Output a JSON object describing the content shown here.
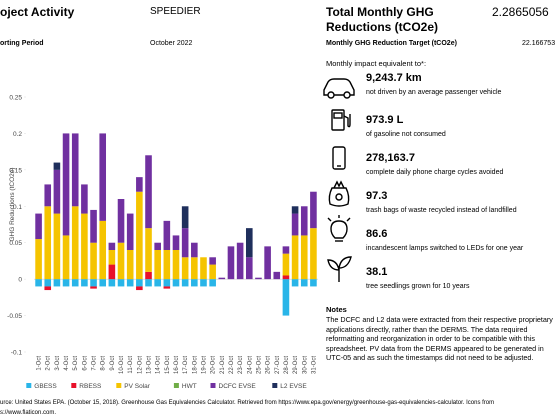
{
  "header": {
    "activity_title": "oject Activity",
    "company": "SPEEDIER",
    "total_label": "Total Monthly GHG Reductions (tCO2e)",
    "total_value": "2.2865056",
    "period_label": "orting Period",
    "period": "October 2022",
    "target_label": "Monthly GHG Reduction Target (tCO2e)",
    "target_value": "22.166753"
  },
  "chart_data": {
    "type": "stacked_bar",
    "y_label": "GHG Reductions (tCO2e)",
    "categories": [
      "1-Oct",
      "2-Oct",
      "3-Oct",
      "4-Oct",
      "5-Oct",
      "6-Oct",
      "7-Oct",
      "8-Oct",
      "9-Oct",
      "10-Oct",
      "11-Oct",
      "12-Oct",
      "13-Oct",
      "14-Oct",
      "15-Oct",
      "16-Oct",
      "17-Oct",
      "18-Oct",
      "19-Oct",
      "20-Oct",
      "21-Oct",
      "22-Oct",
      "23-Oct",
      "24-Oct",
      "25-Oct",
      "26-Oct",
      "27-Oct",
      "28-Oct",
      "29-Oct",
      "30-Oct",
      "31-Oct"
    ],
    "series": [
      {
        "name": "GBESS",
        "color": "#29b5e8",
        "values": [
          -0.01,
          -0.01,
          -0.01,
          -0.01,
          -0.01,
          -0.01,
          -0.01,
          -0.01,
          -0.01,
          -0.01,
          -0.01,
          -0.01,
          -0.01,
          -0.01,
          -0.01,
          -0.01,
          -0.01,
          -0.01,
          -0.01,
          -0.01,
          0,
          0,
          0,
          0,
          0,
          0,
          0,
          -0.05,
          -0.01,
          -0.01,
          -0.01
        ]
      },
      {
        "name": "RBESS",
        "color": "#e8102a",
        "values": [
          0,
          -0.005,
          0,
          0,
          0,
          0,
          -0.003,
          0,
          0.02,
          0,
          0,
          -0.005,
          0.01,
          0,
          -0.003,
          0,
          0,
          0,
          0,
          0,
          0,
          0,
          0,
          0,
          0,
          0,
          0,
          0.005,
          0,
          0,
          0
        ]
      },
      {
        "name": "PV Solar",
        "color": "#f5c400",
        "values": [
          0.055,
          0.1,
          0.09,
          0.06,
          0.1,
          0.09,
          0.05,
          0.08,
          0.02,
          0.05,
          0.04,
          0.12,
          0.06,
          0.04,
          0.04,
          0.04,
          0.03,
          0.03,
          0.03,
          0.02,
          0,
          0,
          0,
          0,
          0,
          0,
          0,
          0.03,
          0.06,
          0.06,
          0.07
        ]
      },
      {
        "name": "HWT",
        "color": "#70ad47",
        "values": [
          0,
          0,
          0,
          0,
          0,
          0,
          0,
          0,
          0,
          0,
          0,
          0,
          0,
          0,
          0,
          0,
          0,
          0,
          0,
          0,
          0,
          0,
          0,
          0,
          0,
          0,
          0,
          0,
          0,
          0,
          0
        ]
      },
      {
        "name": "DCFC EVSE",
        "color": "#7030a0",
        "values": [
          0.035,
          0.03,
          0.06,
          0.14,
          0.1,
          0.04,
          0.045,
          0.12,
          0.01,
          0.06,
          0.05,
          0.02,
          0.1,
          0.01,
          0.04,
          0.02,
          0.04,
          0.02,
          0,
          0.01,
          0.002,
          0.045,
          0.05,
          0.03,
          0.002,
          0.045,
          0.01,
          0.01,
          0.03,
          0.04,
          0.05
        ]
      },
      {
        "name": "L2 EVSE",
        "color": "#1f2f5c",
        "values": [
          0,
          0,
          0.01,
          0,
          0,
          0,
          0,
          0,
          0,
          0,
          0,
          0,
          0,
          0,
          0,
          0,
          0.03,
          0,
          0,
          0,
          0,
          0,
          0,
          0.04,
          0,
          0,
          0,
          0,
          0.01,
          0,
          0
        ]
      }
    ],
    "ylim": [
      -0.1,
      0.25
    ],
    "yticks": [
      -0.1,
      -0.05,
      0,
      0.05,
      0.1,
      0.15,
      0.2,
      0.25
    ],
    "legend": "bottom"
  },
  "impacts": {
    "heading": "Monthly impact equivalent to*:",
    "items": [
      {
        "value": "9,243.7 km",
        "text": "not driven by an average passenger vehicle"
      },
      {
        "value": "973.9 L",
        "text": "of gasoline not consumed"
      },
      {
        "value": "278,163.7",
        "text": "complete daily phone charge cycles avoided"
      },
      {
        "value": "97.3",
        "text": "trash bags of waste recycled instead of landfilled"
      },
      {
        "value": "86.6",
        "text": "incandescent lamps switched to LEDs for one year"
      },
      {
        "value": "38.1",
        "text": "tree seedlings grown for 10 years"
      }
    ]
  },
  "notes": {
    "title": "Notes",
    "text": "The DCFC and L2 data were extracted from their respective proprietary applications directly, rather than the DERMS. The data required reformatting and reorganization in order to be compatible with this spreadsheet. PV data from the DERMS appeared to be generated in UTC-05 and as such the timestamps did not need to be adjusted."
  },
  "source": {
    "line1": "urce: United States EPA. (October 15, 2018). Greenhouse Gas Equivalencies Calculator. Retrieved from https://www.epa.gov/energy/greenhouse-gas-equivalencies-calculator. Icons from",
    "line2": "s://www.flaticon.com."
  }
}
